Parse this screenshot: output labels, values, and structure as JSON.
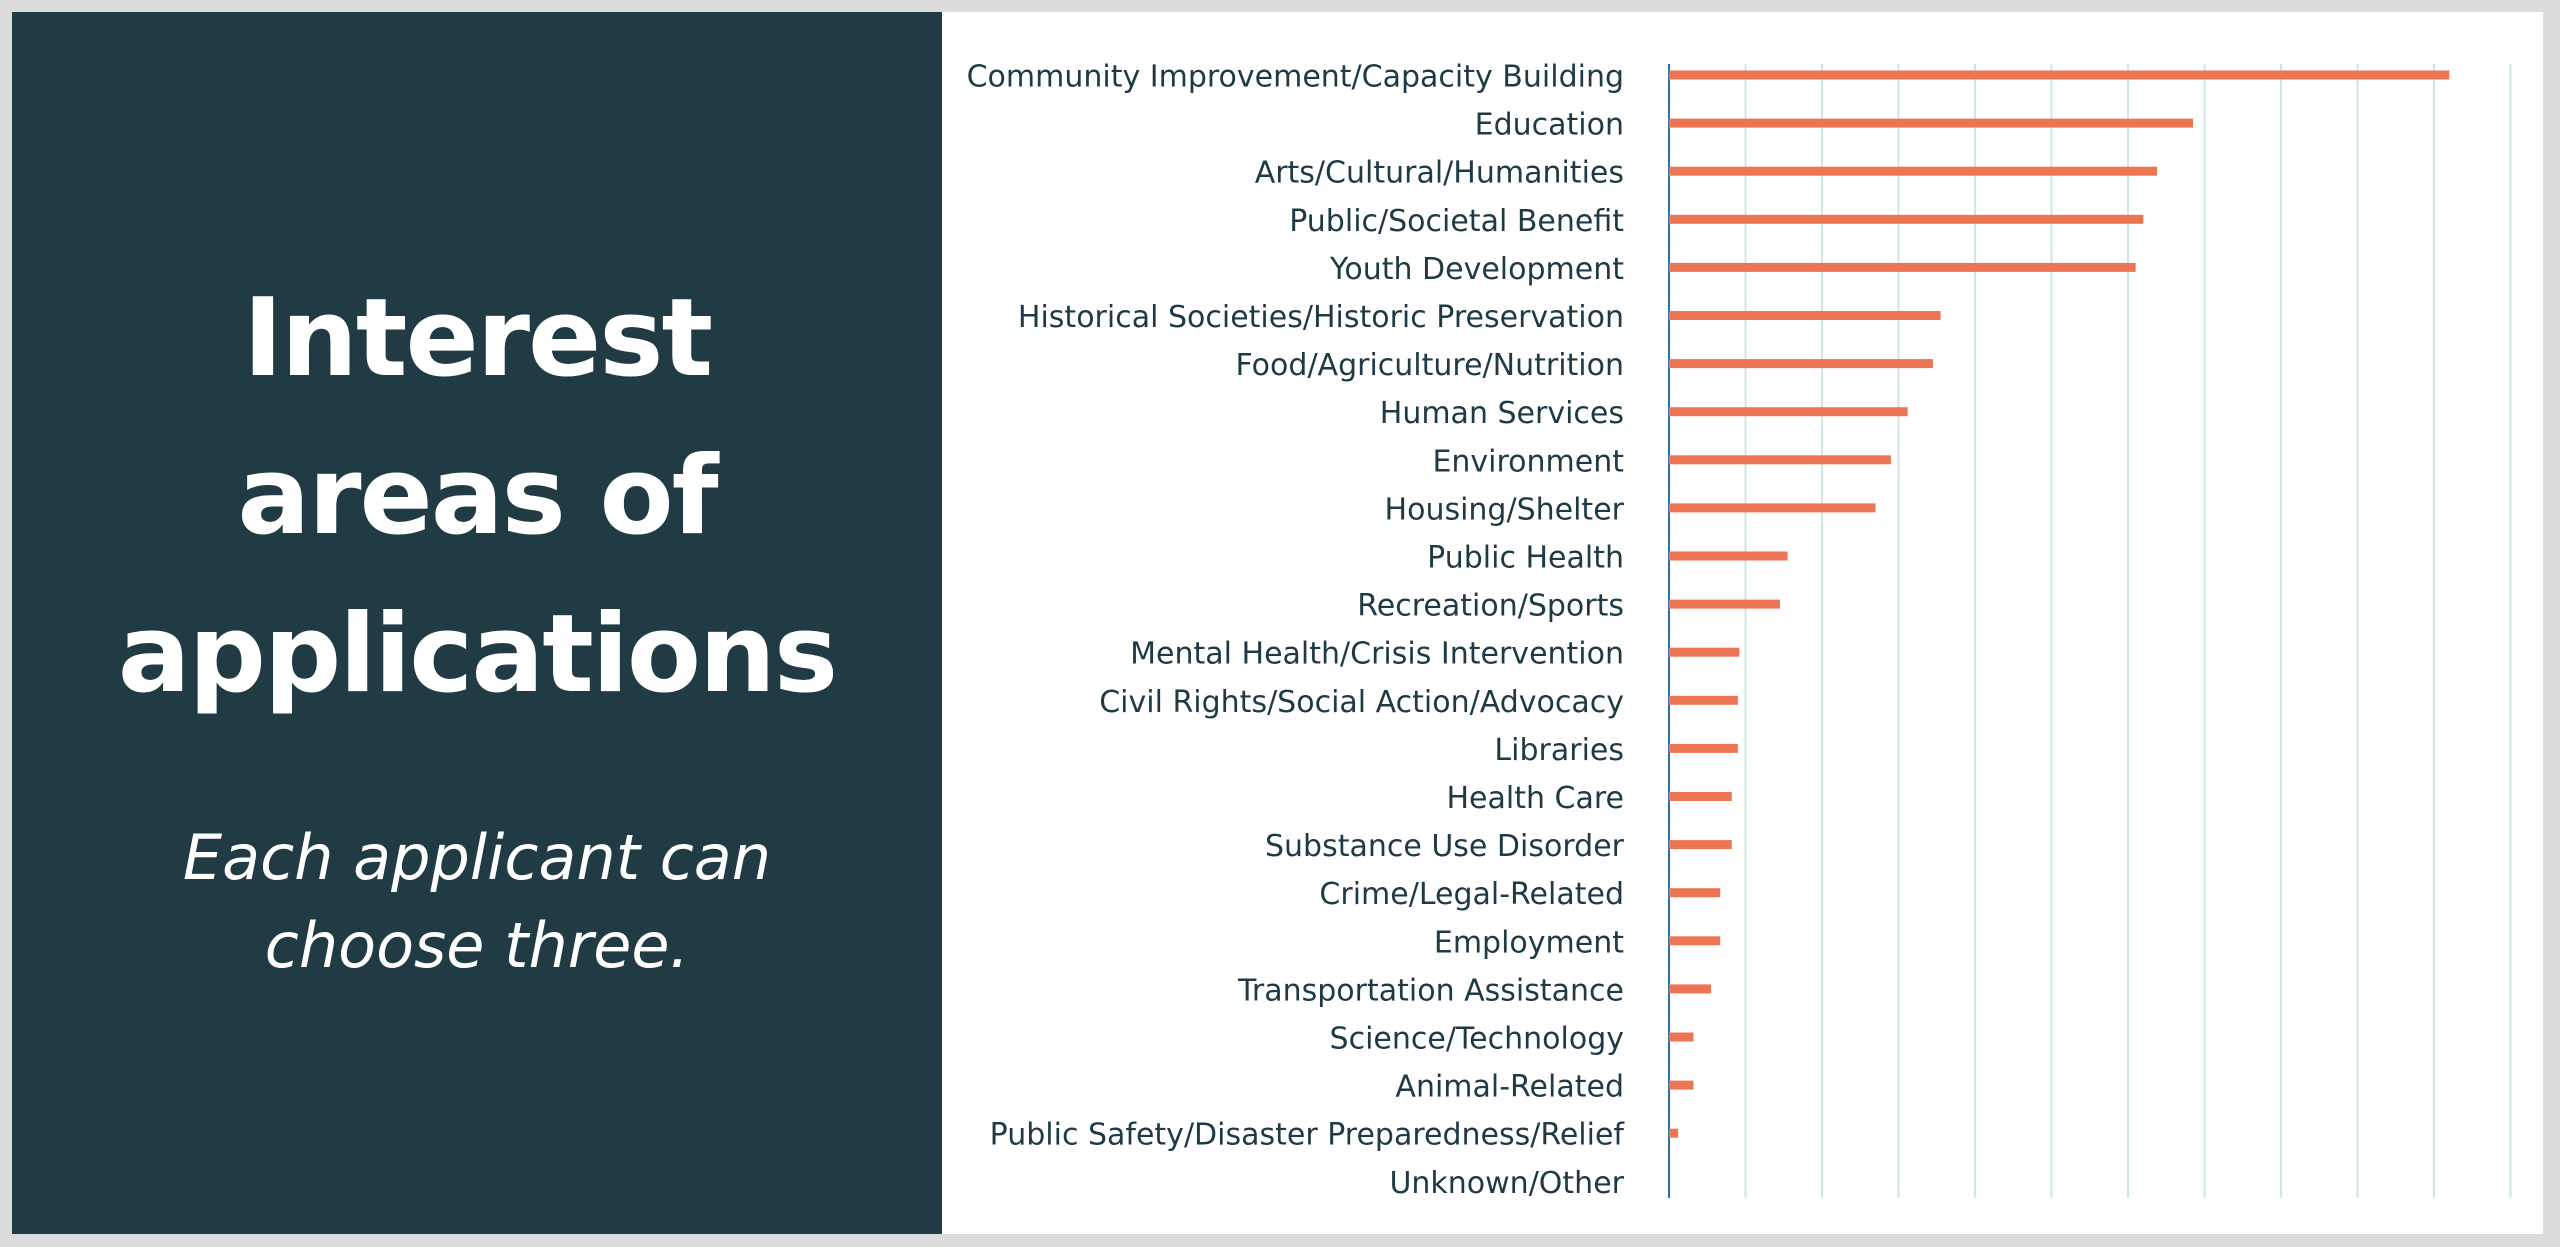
{
  "panel": {
    "title_lines": [
      "Interest",
      "areas of",
      "applications"
    ],
    "subtitle_lines": [
      "Each applicant can",
      "choose three."
    ]
  },
  "colors": {
    "panel_background": "#213b44",
    "bar": "#ee7553",
    "gridline": "#cfe6e6",
    "axis": "#2f6f9f",
    "label_text": "#1f3a45"
  },
  "chart_data": {
    "type": "bar",
    "orientation": "horizontal",
    "title": "",
    "xlabel": "",
    "ylabel": "",
    "xlim": [
      0,
      11
    ],
    "x_gridlines": [
      1,
      2,
      3,
      4,
      5,
      6,
      7,
      8,
      9,
      10,
      11
    ],
    "grid": true,
    "categories": [
      "Community Improvement/Capacity Building",
      "Education",
      "Arts/Cultural/Humanities",
      "Public/Societal Benefit",
      "Youth Development",
      "Historical Societies/Historic Preservation",
      "Food/Agriculture/Nutrition",
      "Human Services",
      "Environment",
      "Housing/Shelter",
      "Public Health",
      "Recreation/Sports",
      "Mental Health/Crisis Intervention",
      "Civil Rights/Social Action/Advocacy",
      "Libraries",
      "Health Care",
      "Substance Use Disorder",
      "Crime/Legal-Related",
      "Employment",
      "Transportation Assistance",
      "Science/Technology",
      "Animal-Related",
      "Public Safety/Disaster Preparedness/Relief",
      "Unknown/Other"
    ],
    "values": [
      10.2,
      6.85,
      6.38,
      6.2,
      6.1,
      3.55,
      3.45,
      3.12,
      2.9,
      2.7,
      1.55,
      1.45,
      0.92,
      0.9,
      0.9,
      0.82,
      0.82,
      0.67,
      0.67,
      0.55,
      0.32,
      0.32,
      0.12,
      0
    ]
  }
}
